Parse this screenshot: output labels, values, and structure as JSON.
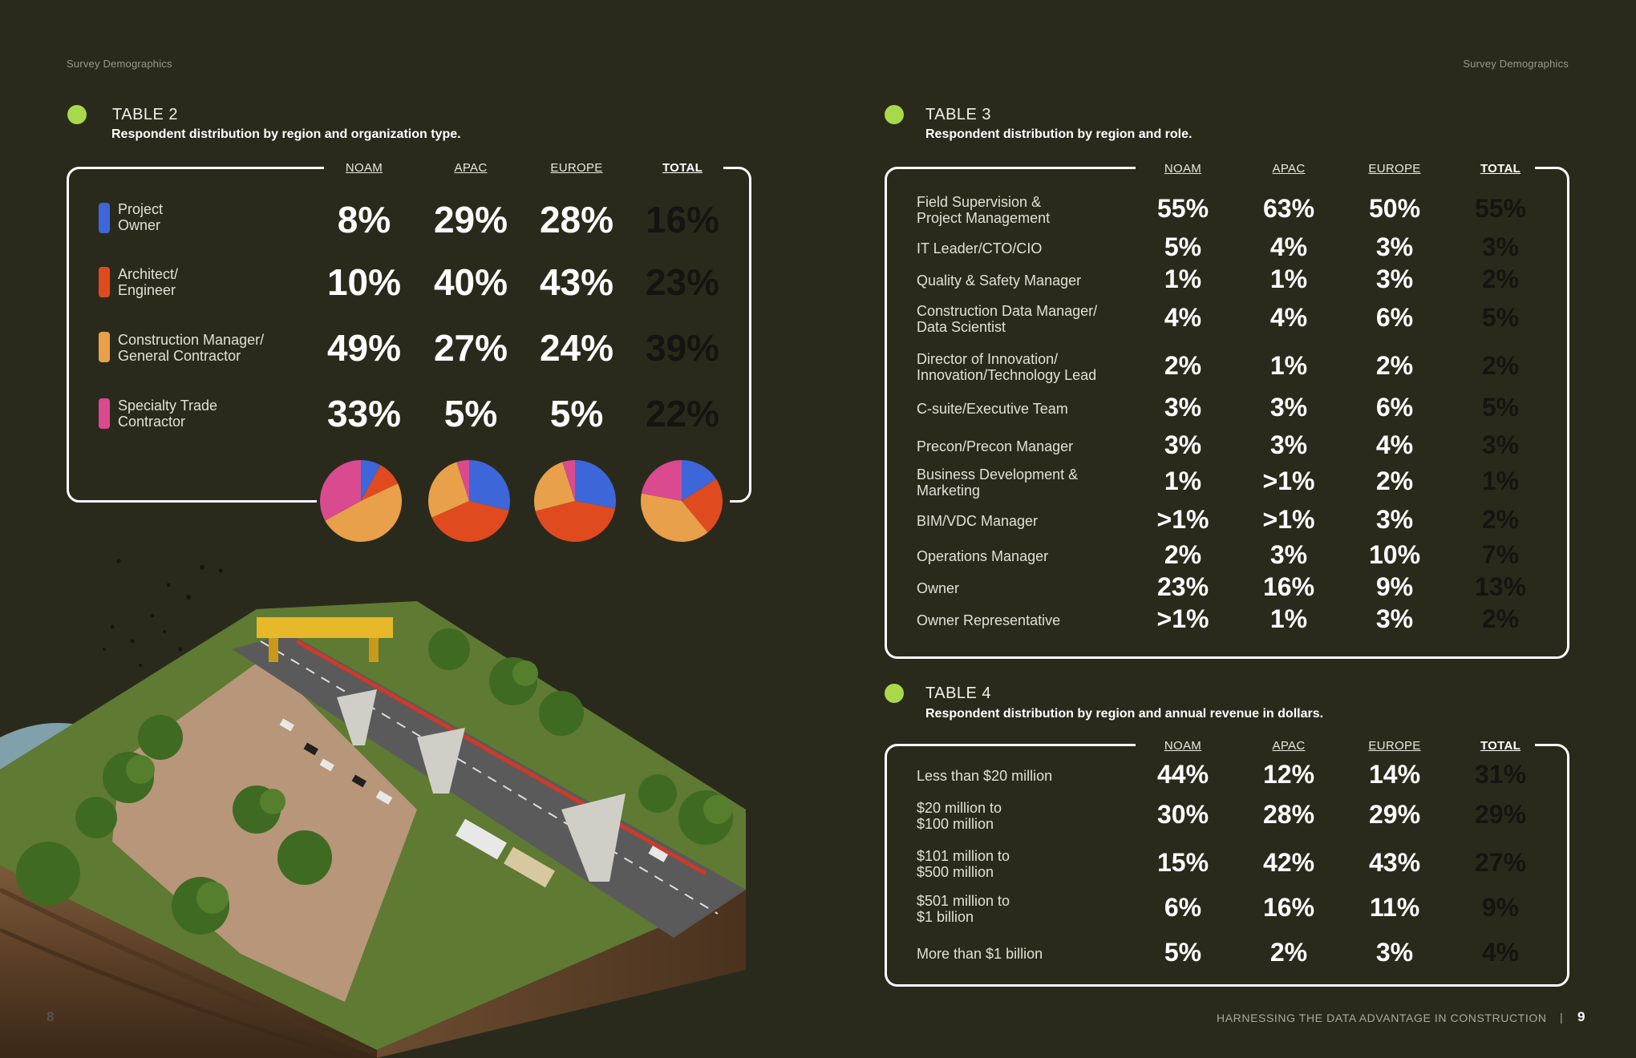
{
  "header": {
    "left_label": "Survey Demographics",
    "right_label": "Survey Demographics"
  },
  "colors": {
    "background": "#2a2a1c",
    "accent_dot": "#a8d94a",
    "project_owner": "#3d66d9",
    "architect_engineer": "#e04a1f",
    "construction_manager": "#e8a04a",
    "specialty_trade": "#d94a8f"
  },
  "table2": {
    "title": "TABLE 2",
    "subtitle": "Respondent distribution by region and organization type.",
    "columns": [
      "NOAM",
      "APAC",
      "EUROPE",
      "TOTAL"
    ],
    "rows": [
      {
        "label": "Project\nOwner",
        "color_key": "project_owner",
        "values": [
          "8%",
          "29%",
          "28%",
          "16%"
        ]
      },
      {
        "label": "Architect/\nEngineer",
        "color_key": "architect_engineer",
        "values": [
          "10%",
          "40%",
          "43%",
          "23%"
        ]
      },
      {
        "label": "Construction Manager/\nGeneral Contractor",
        "color_key": "construction_manager",
        "values": [
          "49%",
          "27%",
          "24%",
          "39%"
        ]
      },
      {
        "label": "Specialty Trade\nContractor",
        "color_key": "specialty_trade",
        "values": [
          "33%",
          "5%",
          "5%",
          "22%"
        ]
      }
    ],
    "pie_data": [
      [
        8,
        10,
        49,
        33
      ],
      [
        29,
        40,
        27,
        5
      ],
      [
        28,
        43,
        24,
        5
      ],
      [
        16,
        23,
        39,
        22
      ]
    ]
  },
  "table3": {
    "title": "TABLE 3",
    "subtitle": "Respondent distribution by region and role.",
    "columns": [
      "NOAM",
      "APAC",
      "EUROPE",
      "TOTAL"
    ],
    "rows": [
      {
        "label": "Field Supervision &\nProject Management",
        "values": [
          "55%",
          "63%",
          "50%",
          "55%"
        ]
      },
      {
        "label": "IT Leader/CTO/CIO",
        "values": [
          "5%",
          "4%",
          "3%",
          "3%"
        ]
      },
      {
        "label": "Quality & Safety Manager",
        "values": [
          "1%",
          "1%",
          "3%",
          "2%"
        ]
      },
      {
        "label": "Construction Data Manager/\nData Scientist",
        "values": [
          "4%",
          "4%",
          "6%",
          "5%"
        ]
      },
      {
        "label": "Director of Innovation/\nInnovation/Technology Lead",
        "values": [
          "2%",
          "1%",
          "2%",
          "2%"
        ]
      },
      {
        "label": "C-suite/Executive Team",
        "values": [
          "3%",
          "3%",
          "6%",
          "5%"
        ]
      },
      {
        "label": "Precon/Precon Manager",
        "values": [
          "3%",
          "3%",
          "4%",
          "3%"
        ]
      },
      {
        "label": "Business Development &\nMarketing",
        "values": [
          "1%",
          ">1%",
          "2%",
          "1%"
        ]
      },
      {
        "label": "BIM/VDC Manager",
        "values": [
          ">1%",
          ">1%",
          "3%",
          "2%"
        ]
      },
      {
        "label": "Operations Manager",
        "values": [
          "2%",
          "3%",
          "10%",
          "7%"
        ]
      },
      {
        "label": "Owner",
        "values": [
          "23%",
          "16%",
          "9%",
          "13%"
        ]
      },
      {
        "label": "Owner Representative",
        "values": [
          ">1%",
          "1%",
          "3%",
          "2%"
        ]
      }
    ]
  },
  "table4": {
    "title": "TABLE 4",
    "subtitle": "Respondent distribution by region and annual revenue in dollars.",
    "columns": [
      "NOAM",
      "APAC",
      "EUROPE",
      "TOTAL"
    ],
    "rows": [
      {
        "label": "Less than $20 million",
        "values": [
          "44%",
          "12%",
          "14%",
          "31%"
        ]
      },
      {
        "label": "$20 million to\n$100 million",
        "values": [
          "30%",
          "28%",
          "29%",
          "29%"
        ]
      },
      {
        "label": "$101 million to\n$500 million",
        "values": [
          "15%",
          "42%",
          "43%",
          "27%"
        ]
      },
      {
        "label": "$501 million to\n$1 billion",
        "values": [
          "6%",
          "16%",
          "11%",
          "9%"
        ]
      },
      {
        "label": "More than $1 billion",
        "values": [
          "5%",
          "2%",
          "3%",
          "4%"
        ]
      }
    ]
  },
  "footer": {
    "left_page": "8",
    "title": "HARNESSING THE DATA ADVANTAGE IN CONSTRUCTION",
    "separator": "|",
    "right_page": "9"
  }
}
